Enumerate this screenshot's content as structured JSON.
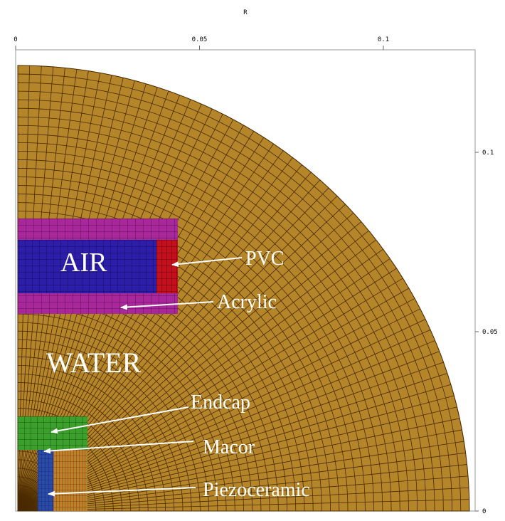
{
  "axes": {
    "title": "R",
    "top_ticks": [
      0,
      0.05,
      0.1
    ],
    "right_ticks": [
      0.1,
      0.05,
      0
    ]
  },
  "labels": {
    "air": "AIR",
    "pvc": "PVC",
    "acrylic": "Acrylic",
    "water": "WATER",
    "endcap": "Endcap",
    "macor": "Macor",
    "piezoceramic": "Piezoceramic"
  }
}
